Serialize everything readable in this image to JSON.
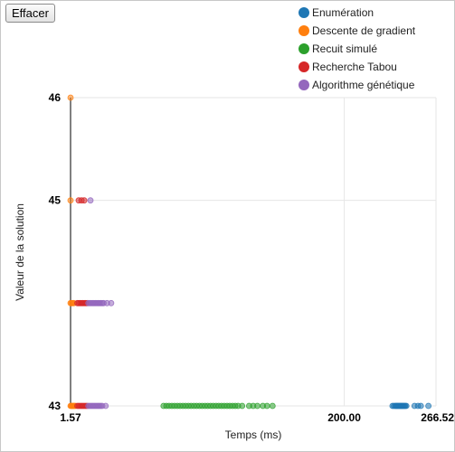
{
  "toolbar": {
    "clear_label": "Effacer"
  },
  "chart_data": {
    "type": "scatter",
    "xlabel": "Temps (ms)",
    "ylabel": "Valeur de la solution",
    "xlim": [
      1.57,
      266.52
    ],
    "ylim": [
      43,
      46
    ],
    "x_ticks": [
      "1.57",
      "200.00",
      "266.52"
    ],
    "x_tick_values": [
      1.57,
      200.0,
      266.52
    ],
    "y_ticks": [
      "46",
      "45",
      "43"
    ],
    "y_tick_values": [
      46,
      45,
      43
    ],
    "grid": true,
    "legend_position": "top-right",
    "series": [
      {
        "name": "Enumération",
        "color": "#1f77b4",
        "points": [
          [
            235.0,
            43
          ],
          [
            236.0,
            43
          ],
          [
            237.0,
            43
          ],
          [
            237.6,
            43
          ],
          [
            238.2,
            43
          ],
          [
            238.8,
            43
          ],
          [
            239.4,
            43
          ],
          [
            240.0,
            43
          ],
          [
            240.6,
            43
          ],
          [
            241.2,
            43
          ],
          [
            241.8,
            43
          ],
          [
            242.4,
            43
          ],
          [
            243.0,
            43
          ],
          [
            243.6,
            43
          ],
          [
            244.2,
            43
          ],
          [
            245.0,
            43
          ],
          [
            251.0,
            43
          ],
          [
            253.5,
            43
          ],
          [
            255.5,
            43
          ],
          [
            261.0,
            43
          ]
        ]
      },
      {
        "name": "Descente de gradient",
        "color": "#ff7f0e",
        "points": [
          [
            1.57,
            46
          ],
          [
            1.57,
            45
          ],
          [
            1.57,
            44
          ],
          [
            1.57,
            43
          ],
          [
            2.1,
            43
          ],
          [
            2.6,
            43
          ],
          [
            3.2,
            43
          ],
          [
            3.8,
            43
          ],
          [
            4.4,
            43
          ],
          [
            5.1,
            43
          ],
          [
            2.2,
            44
          ],
          [
            3.0,
            44
          ],
          [
            3.9,
            44
          ]
        ]
      },
      {
        "name": "Recuit simulé",
        "color": "#2ca02c",
        "points": [
          [
            69,
            43
          ],
          [
            71,
            43
          ],
          [
            73,
            43
          ],
          [
            75,
            43
          ],
          [
            77,
            43
          ],
          [
            79,
            43
          ],
          [
            81,
            43
          ],
          [
            83,
            43
          ],
          [
            85,
            43
          ],
          [
            87,
            43
          ],
          [
            89,
            43
          ],
          [
            91,
            43
          ],
          [
            93,
            43
          ],
          [
            95,
            43
          ],
          [
            97,
            43
          ],
          [
            99,
            43
          ],
          [
            101,
            43
          ],
          [
            103,
            43
          ],
          [
            105,
            43
          ],
          [
            107,
            43
          ],
          [
            109,
            43
          ],
          [
            111,
            43
          ],
          [
            113,
            43
          ],
          [
            115,
            43
          ],
          [
            117,
            43
          ],
          [
            119,
            43
          ],
          [
            121,
            43
          ],
          [
            123,
            43
          ],
          [
            126,
            43
          ],
          [
            131,
            43
          ],
          [
            134,
            43
          ],
          [
            137,
            43
          ],
          [
            141,
            43
          ],
          [
            144,
            43
          ],
          [
            148,
            43
          ]
        ]
      },
      {
        "name": "Recherche Tabou",
        "color": "#d62728",
        "points": [
          [
            7.5,
            45
          ],
          [
            9.5,
            45
          ],
          [
            11.5,
            45
          ],
          [
            6.5,
            44
          ],
          [
            7.5,
            44
          ],
          [
            8.5,
            44
          ],
          [
            9.5,
            44
          ],
          [
            10.5,
            44
          ],
          [
            11.5,
            44
          ],
          [
            12.5,
            44
          ],
          [
            13.5,
            44
          ],
          [
            6.5,
            43
          ],
          [
            7.5,
            43
          ],
          [
            8.5,
            43
          ],
          [
            9.5,
            43
          ],
          [
            10.5,
            43
          ],
          [
            11.5,
            43
          ],
          [
            12.5,
            43
          ],
          [
            13.5,
            43
          ]
        ]
      },
      {
        "name": "Algorithme génétique",
        "color": "#9467bd",
        "points": [
          [
            16,
            45
          ],
          [
            14.5,
            44
          ],
          [
            15.5,
            44
          ],
          [
            16.5,
            44
          ],
          [
            17.5,
            44
          ],
          [
            18.5,
            44
          ],
          [
            19.5,
            44
          ],
          [
            20.5,
            44
          ],
          [
            21.5,
            44
          ],
          [
            22.5,
            44
          ],
          [
            23.5,
            44
          ],
          [
            24.5,
            44
          ],
          [
            25.5,
            44
          ],
          [
            28,
            44
          ],
          [
            31,
            44
          ],
          [
            14.5,
            43
          ],
          [
            15.5,
            43
          ],
          [
            16.5,
            43
          ],
          [
            17.5,
            43
          ],
          [
            18.5,
            43
          ],
          [
            19.5,
            43
          ],
          [
            20.5,
            43
          ],
          [
            21.5,
            43
          ],
          [
            22.5,
            43
          ],
          [
            23.5,
            43
          ],
          [
            24.5,
            43
          ],
          [
            27,
            43
          ]
        ]
      }
    ]
  }
}
